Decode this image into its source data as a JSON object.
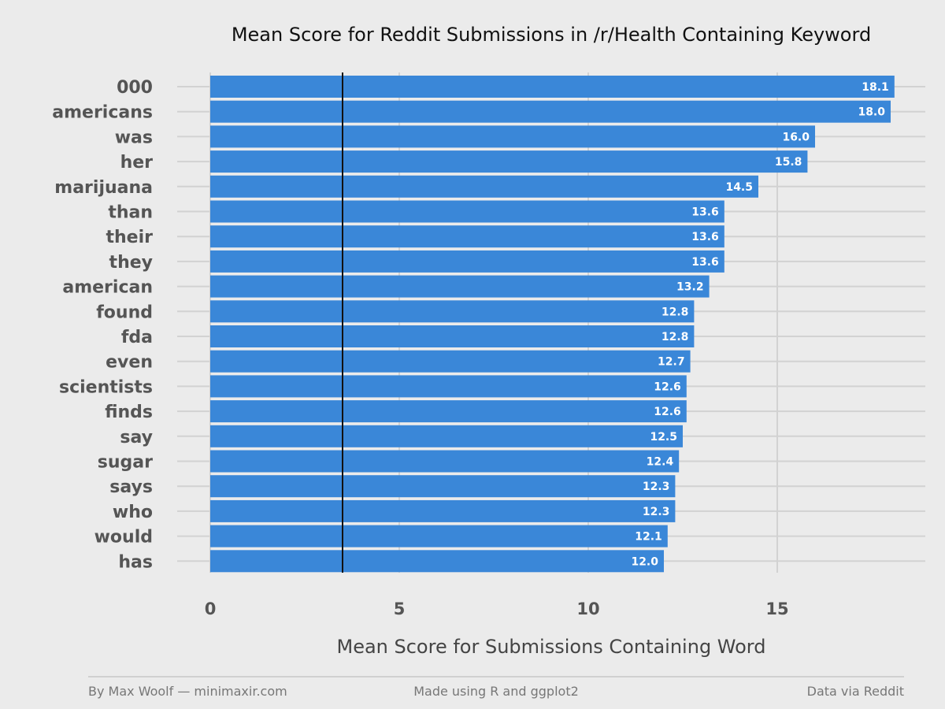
{
  "chart_data": {
    "type": "bar",
    "orientation": "horizontal",
    "title": "Mean Score for Reddit Submissions in /r/Health Containing Keyword",
    "xlabel": "Mean Score for Submissions Containing Word",
    "ylabel": "",
    "categories": [
      "000",
      "americans",
      "was",
      "her",
      "marijuana",
      "than",
      "their",
      "they",
      "american",
      "found",
      "fda",
      "even",
      "scientists",
      "finds",
      "say",
      "sugar",
      "says",
      "who",
      "would",
      "has"
    ],
    "values": [
      18.1,
      18.0,
      16.0,
      15.8,
      14.5,
      13.6,
      13.6,
      13.6,
      13.2,
      12.8,
      12.8,
      12.7,
      12.6,
      12.6,
      12.5,
      12.4,
      12.3,
      12.3,
      12.1,
      12.0
    ],
    "value_labels": [
      "18.1",
      "18.0",
      "16.0",
      "15.8",
      "14.5",
      "13.6",
      "13.6",
      "13.6",
      "13.2",
      "12.8",
      "12.8",
      "12.7",
      "12.6",
      "12.6",
      "12.5",
      "12.4",
      "12.3",
      "12.3",
      "12.1",
      "12.0"
    ],
    "xlim": [
      0,
      18.8
    ],
    "xticks": [
      0,
      5,
      10,
      15
    ],
    "xtick_labels": [
      "0",
      "5",
      "10",
      "15"
    ],
    "reference_line": 3.5,
    "grid": true,
    "legend": "none",
    "bar_color": "#3a87d8",
    "background_color": "#ebebeb"
  },
  "footer": {
    "left": "By Max Woolf — minimaxir.com",
    "center": "Made using R and ggplot2",
    "right": "Data via Reddit"
  }
}
